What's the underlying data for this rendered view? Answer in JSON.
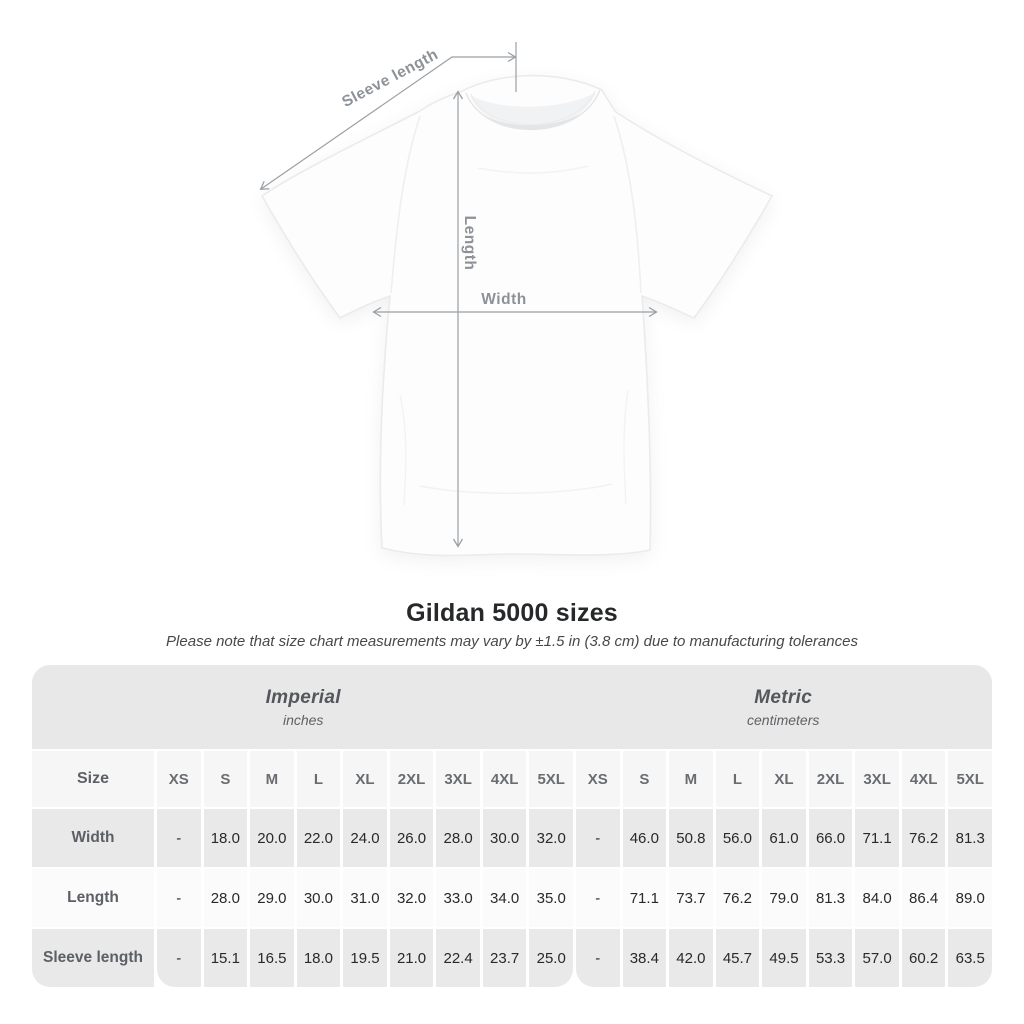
{
  "diagram": {
    "labels": {
      "sleeve_length": "Sleeve length",
      "length": "Length",
      "width": "Width"
    },
    "colors": {
      "measure_line": "#9aa0a4",
      "measure_text": "#8d9298",
      "shirt_fill": "#fdfdfd",
      "shirt_outline": "#ebebeb"
    }
  },
  "title": "Gildan 5000 sizes",
  "subtitle": "Please note that size chart measurements may vary by ±1.5 in (3.8 cm) due to manufacturing tolerances",
  "table": {
    "colors": {
      "header_band": "#e8e8e8",
      "row_gray": "#e9e9e9",
      "row_light": "#fbfbfb",
      "sizes_row": "#f6f6f6"
    },
    "unit_groups": [
      {
        "name": "Imperial",
        "unit": "inches"
      },
      {
        "name": "Metric",
        "unit": "centimeters"
      }
    ],
    "size_header": "Size",
    "sizes": [
      "XS",
      "S",
      "M",
      "L",
      "XL",
      "2XL",
      "3XL",
      "4XL",
      "5XL"
    ],
    "rows": [
      {
        "label": "Width",
        "imperial": [
          "-",
          "18.0",
          "20.0",
          "22.0",
          "24.0",
          "26.0",
          "28.0",
          "30.0",
          "32.0"
        ],
        "metric": [
          "-",
          "46.0",
          "50.8",
          "56.0",
          "61.0",
          "66.0",
          "71.1",
          "76.2",
          "81.3"
        ]
      },
      {
        "label": "Length",
        "imperial": [
          "-",
          "28.0",
          "29.0",
          "30.0",
          "31.0",
          "32.0",
          "33.0",
          "34.0",
          "35.0"
        ],
        "metric": [
          "-",
          "71.1",
          "73.7",
          "76.2",
          "79.0",
          "81.3",
          "84.0",
          "86.4",
          "89.0"
        ]
      },
      {
        "label": "Sleeve length",
        "imperial": [
          "-",
          "15.1",
          "16.5",
          "18.0",
          "19.5",
          "21.0",
          "22.4",
          "23.7",
          "25.0"
        ],
        "metric": [
          "-",
          "38.4",
          "42.0",
          "45.7",
          "49.5",
          "53.3",
          "57.0",
          "60.2",
          "63.5"
        ]
      }
    ]
  },
  "chart_data": {
    "type": "table",
    "title": "Gildan 5000 sizes",
    "note": "Please note that size chart measurements may vary by ±1.5 in (3.8 cm) due to manufacturing tolerances",
    "column_groups": [
      "Imperial (inches)",
      "Metric (centimeters)"
    ],
    "sizes": [
      "XS",
      "S",
      "M",
      "L",
      "XL",
      "2XL",
      "3XL",
      "4XL",
      "5XL"
    ],
    "rows": [
      {
        "label": "Width",
        "imperial": [
          null,
          18.0,
          20.0,
          22.0,
          24.0,
          26.0,
          28.0,
          30.0,
          32.0
        ],
        "metric": [
          null,
          46.0,
          50.8,
          56.0,
          61.0,
          66.0,
          71.1,
          76.2,
          81.3
        ]
      },
      {
        "label": "Length",
        "imperial": [
          null,
          28.0,
          29.0,
          30.0,
          31.0,
          32.0,
          33.0,
          34.0,
          35.0
        ],
        "metric": [
          null,
          71.1,
          73.7,
          76.2,
          79.0,
          81.3,
          84.0,
          86.4,
          89.0
        ]
      },
      {
        "label": "Sleeve length",
        "imperial": [
          null,
          15.1,
          16.5,
          18.0,
          19.5,
          21.0,
          22.4,
          23.7,
          25.0
        ],
        "metric": [
          null,
          38.4,
          42.0,
          45.7,
          49.5,
          53.3,
          57.0,
          60.2,
          63.5
        ]
      }
    ]
  }
}
